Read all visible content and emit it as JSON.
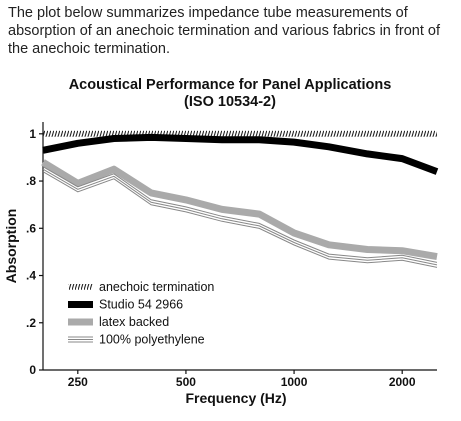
{
  "intro_text": "The plot below summarizes impedance tube measurements of absorption of an anechoic termination and various fabrics in front of the anechoic termination.",
  "chart_data": {
    "type": "line",
    "title": [
      "Acoustical Performance for Panel Applications",
      "(ISO 10534-2)"
    ],
    "xlabel": "Frequency (Hz)",
    "ylabel": "Absorption",
    "x_scale": "log",
    "xlim": [
      200,
      2500
    ],
    "ylim": [
      0,
      1.05
    ],
    "x_ticks": [
      250,
      500,
      1000,
      2000
    ],
    "x_tick_labels": [
      "250",
      "500",
      "1000",
      "2000"
    ],
    "y_ticks": [
      0,
      0.2,
      0.4,
      0.6,
      0.8,
      1
    ],
    "y_tick_labels": [
      "0",
      ".2",
      ".4",
      ".6",
      ".8",
      "1"
    ],
    "grid": false,
    "legend_position": "lower-left",
    "x": [
      200,
      250,
      315,
      400,
      500,
      630,
      800,
      1000,
      1250,
      1600,
      2000,
      2500
    ],
    "series": [
      {
        "name": "anechoic termination",
        "style": "hatched",
        "color": "#333333",
        "values": [
          1.0,
          1.0,
          1.0,
          1.0,
          1.0,
          1.0,
          1.0,
          1.0,
          1.0,
          1.0,
          1.0,
          1.0
        ]
      },
      {
        "name": "Studio 54 2966",
        "style": "thick",
        "color": "#000000",
        "values": [
          0.93,
          0.96,
          0.98,
          0.985,
          0.98,
          0.975,
          0.975,
          0.965,
          0.945,
          0.915,
          0.895,
          0.84
        ]
      },
      {
        "name": "latex backed",
        "style": "thick",
        "color": "#aaaaaa",
        "values": [
          0.88,
          0.79,
          0.85,
          0.75,
          0.72,
          0.68,
          0.66,
          0.58,
          0.53,
          0.51,
          0.505,
          0.48
        ]
      },
      {
        "name": "100% polyethylene",
        "style": "triple",
        "color": "#888888",
        "values": [
          0.85,
          0.765,
          0.82,
          0.71,
          0.68,
          0.64,
          0.61,
          0.54,
          0.48,
          0.465,
          0.475,
          0.445
        ]
      }
    ]
  }
}
